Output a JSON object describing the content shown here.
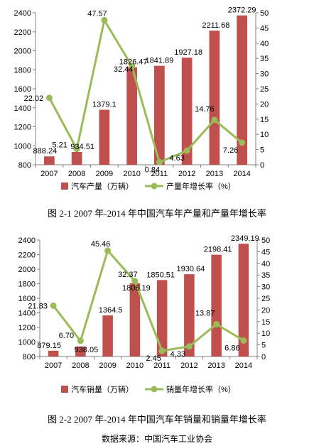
{
  "chart_data": [
    {
      "type": "bar",
      "categories": [
        "2007",
        "2008",
        "2009",
        "2010",
        "2011",
        "2012",
        "2013",
        "2014"
      ],
      "series": [
        {
          "name": "汽车产量（万辆）",
          "type": "bar",
          "axis": "left",
          "color": "#c0504d",
          "values": [
            888.24,
            934.51,
            1379.1,
            1826.47,
            1841.89,
            1927.18,
            2211.68,
            2372.29
          ],
          "labels": [
            "888.24",
            "934.51",
            "1379.1",
            "1826.47",
            "1841.89",
            "1927.18",
            "2211.68",
            "2372.29"
          ]
        },
        {
          "name": "产量年增长率（%）",
          "type": "line",
          "axis": "right",
          "color": "#9bbb59",
          "values": [
            22.02,
            5.21,
            47.57,
            32.44,
            0.84,
            4.63,
            14.76,
            7.26
          ],
          "labels": [
            "22.02",
            "5.21",
            "47.57",
            "32.44",
            "0.84",
            "4.63",
            "14.76",
            "7.26"
          ]
        }
      ],
      "ylim_left": [
        800,
        2400
      ],
      "ylim_right": [
        0,
        50
      ],
      "yticks_left": [
        800,
        1000,
        1200,
        1400,
        1600,
        1800,
        2000,
        2200,
        2400
      ],
      "yticks_right": [
        0,
        5,
        10,
        15,
        20,
        25,
        30,
        35,
        40,
        45,
        50
      ],
      "grid": false,
      "legend": "bottom",
      "title": "图 2-1   2007 年-2014 年中国汽车年产量和产量年增长率"
    },
    {
      "type": "bar",
      "categories": [
        "2007",
        "2008",
        "2009",
        "2010",
        "2011",
        "2012",
        "2013",
        "2014"
      ],
      "series": [
        {
          "name": "汽车销量（万辆）",
          "type": "bar",
          "axis": "left",
          "color": "#c0504d",
          "values": [
            879.15,
            938.05,
            1364.5,
            1806.19,
            1850.51,
            1930.64,
            2198.41,
            2349.19
          ],
          "labels": [
            "879.15",
            "938.05",
            "1364.5",
            "1806.19",
            "1850.51",
            "1930.64",
            "2198.41",
            "2349.19"
          ]
        },
        {
          "name": "销量年增长率（%）",
          "type": "line",
          "axis": "right",
          "color": "#9bbb59",
          "values": [
            21.83,
            6.7,
            45.46,
            32.37,
            2.45,
            4.33,
            13.87,
            6.86
          ],
          "labels": [
            "21.83",
            "6.70",
            "45.46",
            "32.37",
            "2.45",
            "4.33",
            "13.87",
            "6.86"
          ]
        }
      ],
      "ylim_left": [
        800,
        2400
      ],
      "ylim_right": [
        0,
        50
      ],
      "yticks_left": [
        800,
        1000,
        1200,
        1400,
        1600,
        1800,
        2000,
        2200,
        2400
      ],
      "yticks_right": [
        0,
        5,
        10,
        15,
        20,
        25,
        30,
        35,
        40,
        45,
        50
      ],
      "grid": false,
      "legend": "bottom",
      "title": "图 2-2   2007 年-2014 年中国汽车年销量和销量年增长率"
    }
  ],
  "source": "数据来源：中国汽车工业协会"
}
